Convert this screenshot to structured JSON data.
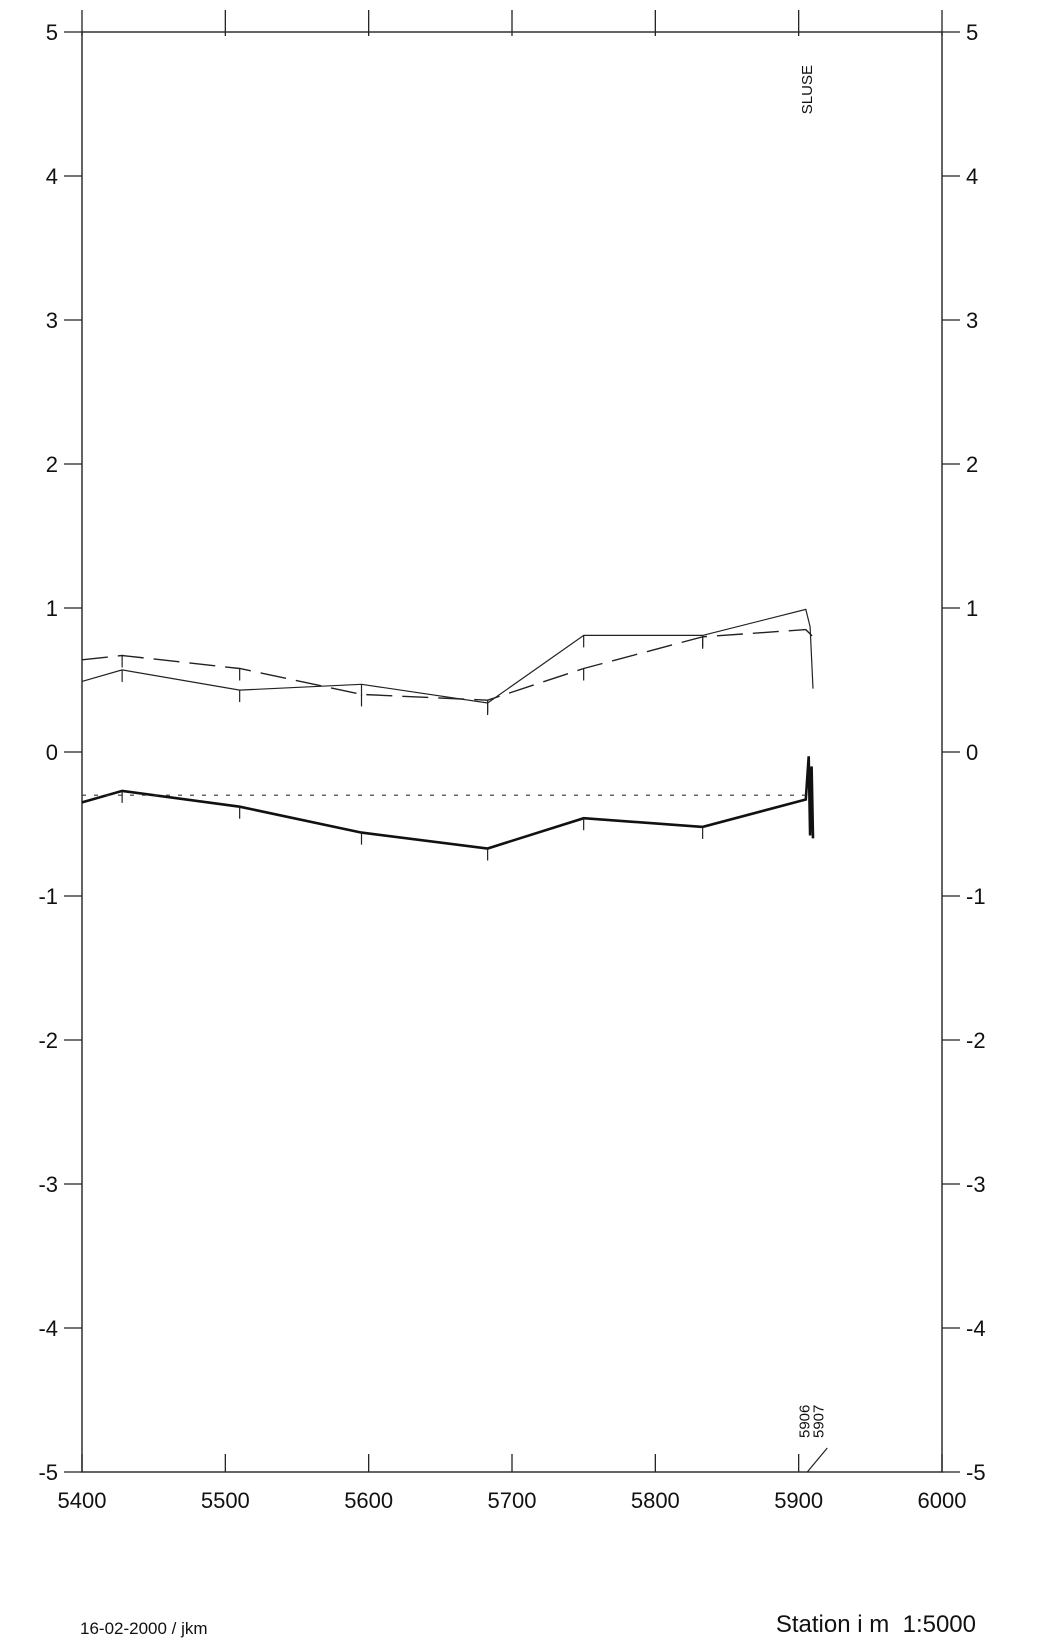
{
  "chart_data": {
    "type": "line",
    "title": "",
    "xlabel": "Station i m",
    "scale": "1:5000",
    "ylabel": "",
    "xlim": [
      5400,
      6000
    ],
    "ylim": [
      -5,
      5
    ],
    "x_ticks": [
      5400,
      5500,
      5600,
      5700,
      5800,
      5900,
      6000
    ],
    "y_ticks": [
      5,
      4,
      3,
      2,
      1,
      0,
      -1,
      -2,
      -3,
      -4,
      -5
    ],
    "legend": "none",
    "grid": false,
    "series": [
      {
        "style": "solid",
        "x": [
          5400,
          5428,
          5510,
          5595,
          5683,
          5750,
          5833,
          5905,
          5908,
          5910
        ],
        "values": [
          0.49,
          0.57,
          0.43,
          0.47,
          0.34,
          0.81,
          0.81,
          0.99,
          0.87,
          0.44
        ]
      },
      {
        "style": "dashed",
        "x": [
          5400,
          5428,
          5510,
          5595,
          5683,
          5750,
          5833,
          5905,
          5910
        ],
        "values": [
          0.64,
          0.67,
          0.58,
          0.4,
          0.36,
          0.58,
          0.8,
          0.85,
          0.8
        ]
      },
      {
        "style": "thick",
        "x": [
          5400,
          5428,
          5510,
          5595,
          5683,
          5750,
          5833,
          5905,
          5907,
          5908,
          5909,
          5910
        ],
        "values": [
          -0.35,
          -0.27,
          -0.38,
          -0.56,
          -0.67,
          -0.46,
          -0.52,
          -0.33,
          -0.03,
          -0.58,
          -0.1,
          -0.6
        ]
      },
      {
        "style": "dotted",
        "x": [
          5400,
          5905
        ],
        "values": [
          -0.3,
          -0.3
        ]
      }
    ],
    "annotations": [
      {
        "text": "SLUSE",
        "x": 5905,
        "y": 4.6
      },
      {
        "text": "5906",
        "x": 5906,
        "y": -5
      },
      {
        "text": "5907",
        "x": 5907,
        "y": -5
      }
    ],
    "footer_left": "16-02-2000 / jkm"
  }
}
